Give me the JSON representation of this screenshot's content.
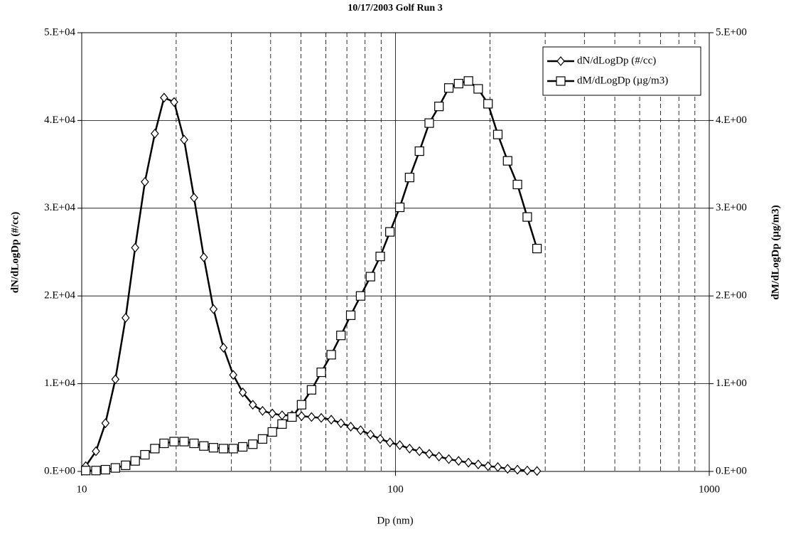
{
  "chart_data": {
    "type": "line",
    "title": "10/17/2003 Golf Run 3",
    "x_label": "Dp (nm)",
    "y_label": "dN/dLogDp (#/cc)",
    "y2_label": "dM/dLogDp (µg/m3)",
    "log_x": true,
    "xlim": [
      10,
      1000
    ],
    "xticks": [
      10,
      100,
      1000
    ],
    "x_minor_gridlines": [
      20,
      30,
      40,
      50,
      60,
      70,
      80,
      90,
      200,
      300,
      400,
      500,
      600,
      700,
      800,
      900
    ],
    "ylim": [
      0,
      50000
    ],
    "yticks": [
      {
        "value": 0,
        "label": "0.E+00"
      },
      {
        "value": 10000,
        "label": "1.E+04"
      },
      {
        "value": 20000,
        "label": "2.E+04"
      },
      {
        "value": 30000,
        "label": "3.E+04"
      },
      {
        "value": 40000,
        "label": "4.E+04"
      },
      {
        "value": 50000,
        "label": "5.E+04"
      }
    ],
    "y2lim": [
      0,
      5
    ],
    "y2ticks": [
      {
        "value": 0,
        "label": "0.E+00"
      },
      {
        "value": 1,
        "label": "1.E+00"
      },
      {
        "value": 2,
        "label": "2.E+00"
      },
      {
        "value": 3,
        "label": "3.E+00"
      },
      {
        "value": 4,
        "label": "4.E+00"
      },
      {
        "value": 5,
        "label": "5.E+00"
      }
    ],
    "grid": true,
    "legend": "upper right",
    "x": [
      10.3,
      11.1,
      11.9,
      12.8,
      13.8,
      14.8,
      15.9,
      17.1,
      18.3,
      19.7,
      21.2,
      22.8,
      24.5,
      26.3,
      28.3,
      30.4,
      32.6,
      35.1,
      37.7,
      40.5,
      43.5,
      46.8,
      50.2,
      54.0,
      58.0,
      62.4,
      67.0,
      72.0,
      77.4,
      83.2,
      89.4,
      96.0,
      103.2,
      110.9,
      119.2,
      128.1,
      137.6,
      147.9,
      158.9,
      170.8,
      183.5,
      197.2,
      211.9,
      227.7,
      244.7,
      263.0,
      282.5
    ],
    "series": [
      {
        "name": "dN/dLogDp (#/cc)",
        "color": "#000000",
        "marker": "diamond",
        "axis": "y",
        "values": [
          600,
          2300,
          5500,
          10500,
          17500,
          25500,
          33000,
          38500,
          42600,
          42100,
          37800,
          31200,
          24400,
          18500,
          14100,
          11000,
          9000,
          7600,
          6900,
          6600,
          6400,
          6400,
          6300,
          6200,
          6100,
          5900,
          5500,
          5100,
          4700,
          4200,
          3700,
          3300,
          3000,
          2600,
          2300,
          2000,
          1700,
          1400,
          1200,
          1000,
          800,
          600,
          500,
          300,
          200,
          100,
          50
        ]
      },
      {
        "name": "dM/dLogDp (µg/m3)",
        "color": "#000000",
        "marker": "square",
        "axis": "y2",
        "values": [
          0.01,
          0.01,
          0.02,
          0.04,
          0.07,
          0.12,
          0.19,
          0.26,
          0.32,
          0.34,
          0.34,
          0.32,
          0.29,
          0.27,
          0.26,
          0.26,
          0.28,
          0.31,
          0.37,
          0.45,
          0.54,
          0.62,
          0.76,
          0.93,
          1.13,
          1.33,
          1.55,
          1.78,
          2.0,
          2.22,
          2.45,
          2.73,
          3.01,
          3.35,
          3.65,
          3.97,
          4.16,
          4.37,
          4.42,
          4.45,
          4.36,
          4.19,
          3.84,
          3.54,
          3.27,
          2.9,
          2.54
        ]
      }
    ]
  }
}
